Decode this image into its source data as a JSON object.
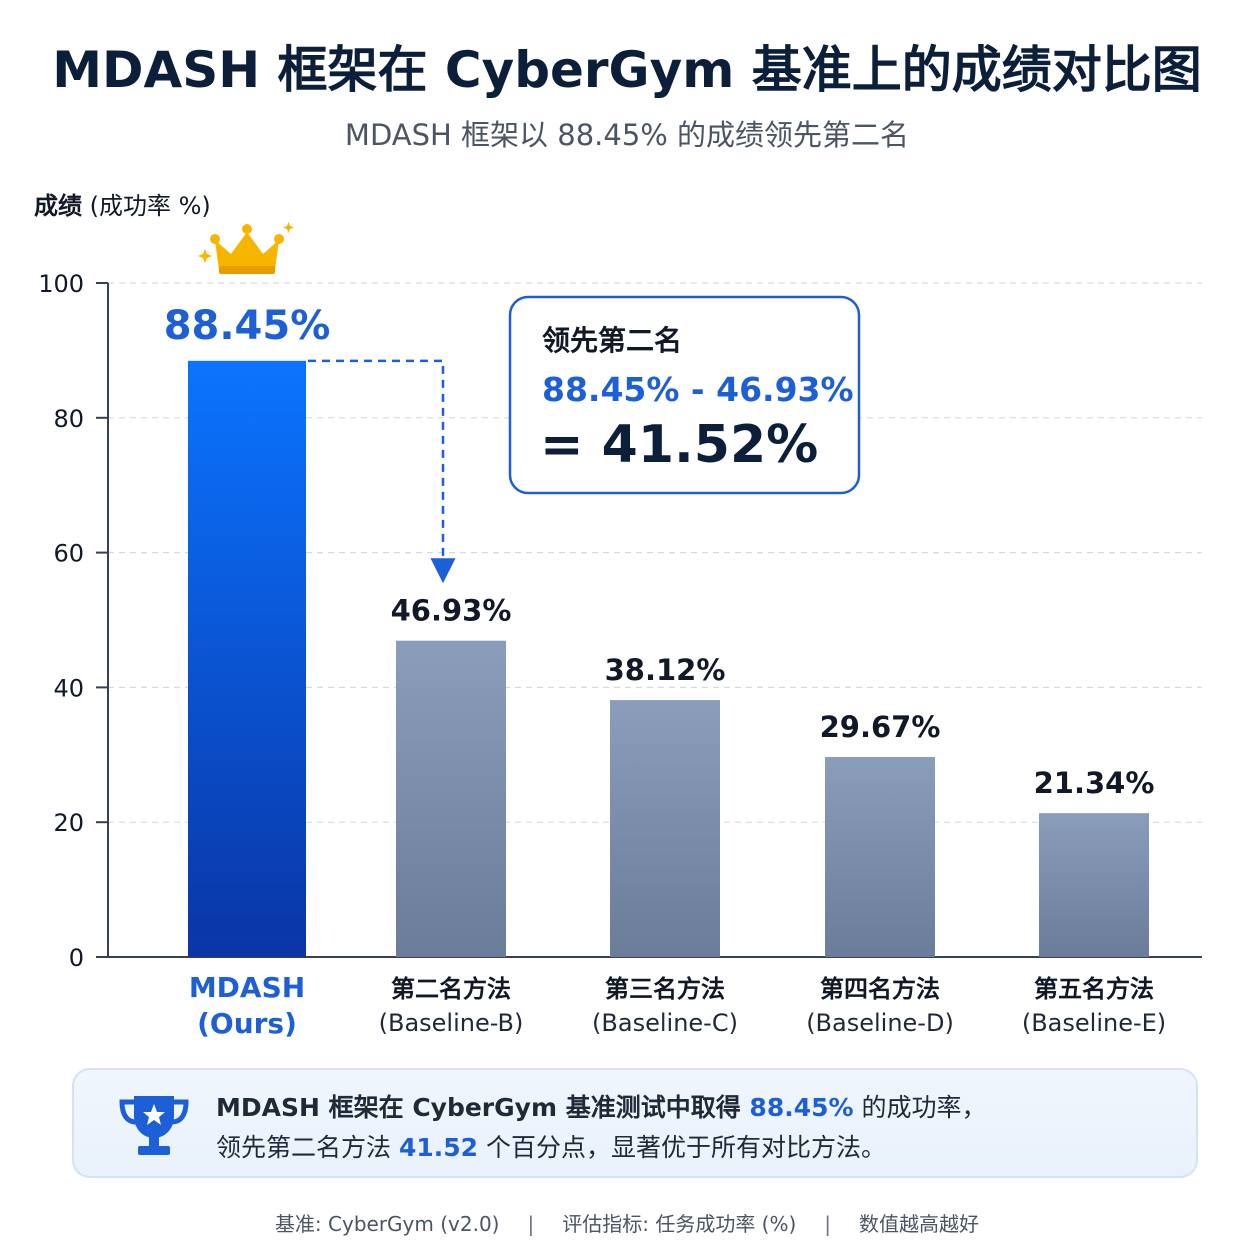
{
  "title": "MDASH 框架在 CyberGym 基准上的成绩对比图",
  "subtitle": "MDASH 框架以 88.45% 的成绩领先第二名",
  "ylabel_bold": "成绩",
  "ylabel_rest": " (成功率 %)",
  "chart_data": {
    "type": "bar",
    "categories": [
      [
        "MDASH",
        "(Ours)"
      ],
      [
        "第二名方法",
        "(Baseline-B)"
      ],
      [
        "第三名方法",
        "(Baseline-C)"
      ],
      [
        "第四名方法",
        "(Baseline-D)"
      ],
      [
        "第五名方法",
        "(Baseline-E)"
      ]
    ],
    "values": [
      88.45,
      46.93,
      38.12,
      29.67,
      21.34
    ],
    "value_labels": [
      "88.45%",
      "46.93%",
      "38.12%",
      "29.67%",
      "21.34%"
    ],
    "ylabel": "成绩 (成功率 %)",
    "ylim": [
      0,
      100
    ],
    "yticks": [
      0,
      20,
      40,
      60,
      80,
      100
    ],
    "grid": true,
    "highlight_index": 0,
    "colors": {
      "highlight_top": "#0b74ff",
      "highlight_bottom": "#0a35a6",
      "baseline_top": "#8a9dbb",
      "baseline_bottom": "#6b7c99",
      "highlight_text": "#1d5fd6",
      "crown": "#f7b500"
    },
    "annotation": {
      "heading": "领先第二名",
      "formula": "88.45% - 46.93%",
      "result": "= 41.52%"
    }
  },
  "summary": {
    "p1": "MDASH 框架在 CyberGym 基准测试中取得 ",
    "p1_value": "88.45%",
    "p1_tail": " 的成功率，",
    "p2": "领先第二名方法 ",
    "p2_value": "41.52",
    "p2_tail": " 个百分点，显著优于所有对比方法。",
    "icon": "trophy-icon"
  },
  "footer": {
    "benchmark": "基准: CyberGym (v2.0)",
    "metric": "评估指标: 任务成功率 (%)",
    "note": "数值越高越好",
    "separator": "|"
  }
}
